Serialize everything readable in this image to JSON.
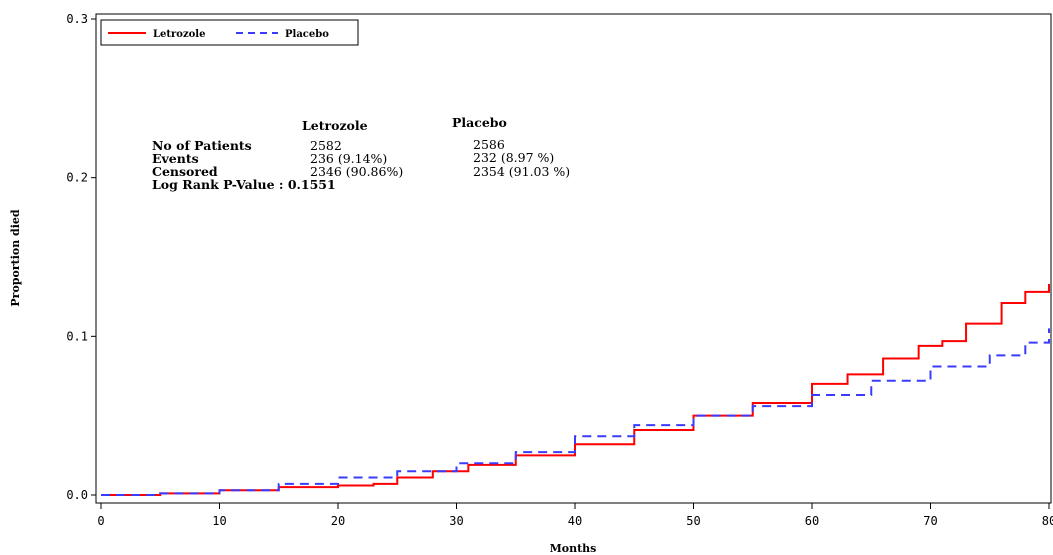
{
  "chart_data": {
    "type": "line",
    "xlabel": "Months",
    "ylabel": "Proportion died",
    "xlim": [
      0,
      80
    ],
    "ylim": [
      0,
      0.3
    ],
    "x_ticks": [
      0,
      10,
      20,
      30,
      40,
      50,
      60,
      70,
      80
    ],
    "x_tick_labels": [
      "0",
      "10",
      "20",
      "30",
      "40",
      "50",
      "60",
      "70",
      "80"
    ],
    "y_ticks": [
      0,
      0.1,
      0.2,
      0.3
    ],
    "y_tick_labels": [
      "0.0",
      "0.1",
      "0.2",
      "0.3"
    ],
    "grid": false,
    "legend_position": "top-left",
    "series": [
      {
        "name": "Letrozole",
        "color": "#ff0000",
        "style": "solid",
        "x": [
          0,
          5,
          10,
          15,
          20,
          23,
          25,
          28,
          31,
          35,
          40,
          45,
          50,
          55,
          60,
          63,
          66,
          69,
          71,
          73,
          76,
          78,
          80
        ],
        "y": [
          0,
          0.001,
          0.003,
          0.005,
          0.006,
          0.007,
          0.011,
          0.015,
          0.019,
          0.025,
          0.032,
          0.041,
          0.05,
          0.058,
          0.07,
          0.076,
          0.086,
          0.094,
          0.097,
          0.108,
          0.121,
          0.128,
          0.133
        ]
      },
      {
        "name": "Placebo",
        "color": "#3b3bff",
        "style": "dashed",
        "x": [
          0,
          5,
          10,
          15,
          20,
          25,
          30,
          35,
          40,
          45,
          50,
          55,
          60,
          65,
          70,
          75,
          78,
          80
        ],
        "y": [
          0,
          0.001,
          0.003,
          0.007,
          0.011,
          0.015,
          0.02,
          0.027,
          0.037,
          0.044,
          0.05,
          0.056,
          0.063,
          0.072,
          0.081,
          0.088,
          0.096,
          0.105
        ]
      }
    ],
    "stats_table": {
      "columns": [
        "Letrozole",
        "Placebo"
      ],
      "rows": [
        {
          "label": "No of Patients",
          "values": [
            "2582",
            "2586"
          ]
        },
        {
          "label": "Events",
          "values": [
            "236 (9.14%)",
            "232 (8.97 %)"
          ]
        },
        {
          "label": "Censored",
          "values": [
            "2346 (90.86%)",
            "2354 (91.03 %)"
          ]
        }
      ],
      "footer": "Log Rank P-Value : 0.1551"
    }
  }
}
